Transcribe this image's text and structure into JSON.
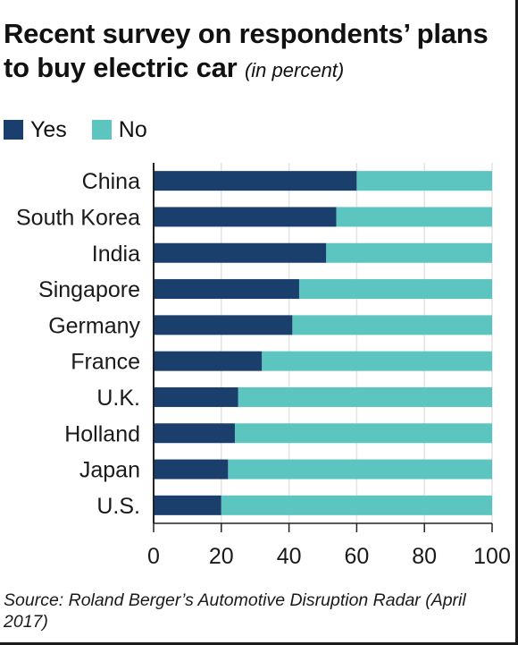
{
  "header": {
    "title": "Recent survey on respondents’ plans to buy electric car",
    "unit": "(in percent)"
  },
  "legend": {
    "yes": "Yes",
    "no": "No"
  },
  "colors": {
    "yes": "#1b3f6d",
    "no": "#5cc5bf",
    "grid": "#e3e3e3",
    "axis": "#222222"
  },
  "source": "Source: Roland Berger’s Automotive Disruption Radar (April 2017)",
  "chart_data": {
    "type": "bar",
    "orientation": "horizontal",
    "stacked": true,
    "categories": [
      "China",
      "South Korea",
      "India",
      "Singapore",
      "Germany",
      "France",
      "U.K.",
      "Holland",
      "Japan",
      "U.S."
    ],
    "series": [
      {
        "name": "Yes",
        "values": [
          60,
          54,
          51,
          43,
          41,
          32,
          25,
          24,
          22,
          20
        ]
      },
      {
        "name": "No",
        "values": [
          40,
          46,
          49,
          57,
          59,
          68,
          75,
          76,
          78,
          80
        ]
      }
    ],
    "xlim": [
      0,
      100
    ],
    "xticks": [
      0,
      20,
      40,
      60,
      80,
      100
    ],
    "grid": true,
    "legend_position": "top-left"
  }
}
